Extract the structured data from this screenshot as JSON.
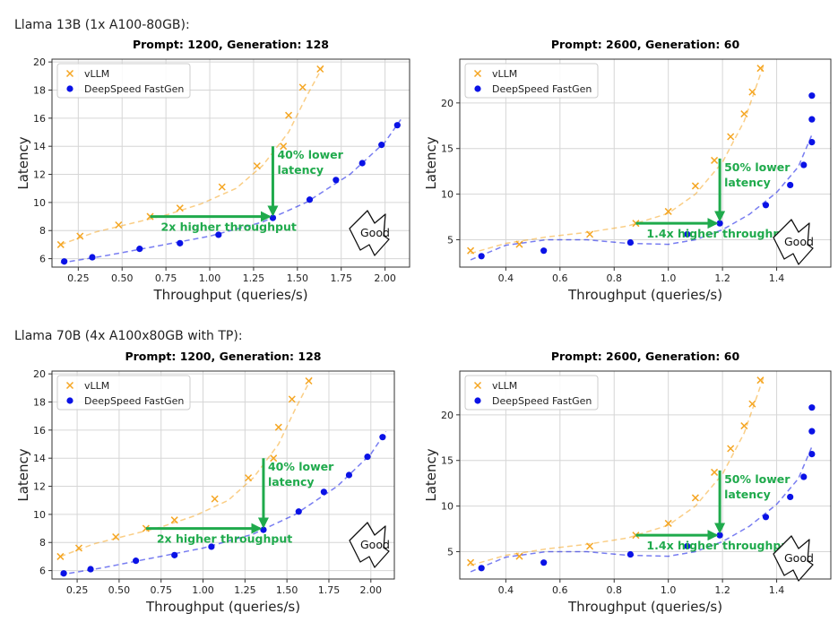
{
  "sections": [
    {
      "label": "Llama 13B (1x A100-80GB):"
    },
    {
      "label": "Llama 70B (4x A100x80GB with TP):"
    }
  ],
  "colors": {
    "vllm": "#f5a623",
    "fastgen": "#0a12e6",
    "annotation": "#1faa4c"
  },
  "chart_data": [
    {
      "type": "scatter",
      "title": "Prompt: 1200, Generation: 128",
      "xlabel": "Throughput (queries/s)",
      "ylabel": "Latency",
      "xlim": [
        0.1,
        2.14
      ],
      "ylim": [
        5.4,
        20.2
      ],
      "xticks": [
        0.25,
        0.5,
        0.75,
        1.0,
        1.25,
        1.5,
        1.75,
        2.0
      ],
      "xtick_labels": [
        "0.25",
        "0.50",
        "0.75",
        "1.00",
        "1.25",
        "1.50",
        "1.75",
        "2.00"
      ],
      "yticks": [
        6,
        8,
        10,
        12,
        14,
        16,
        18,
        20
      ],
      "ytick_labels": [
        "6",
        "8",
        "10",
        "12",
        "14",
        "16",
        "18",
        "20"
      ],
      "grid": true,
      "legend_position": "top-left",
      "series": [
        {
          "name": "vLLM",
          "marker": "x",
          "color": "#f5a623",
          "x": [
            0.15,
            0.26,
            0.48,
            0.66,
            0.83,
            1.07,
            1.27,
            1.45,
            1.53,
            1.63,
            1.42
          ],
          "y": [
            7.0,
            7.6,
            8.4,
            9.0,
            9.6,
            11.1,
            12.6,
            16.2,
            18.2,
            19.5,
            14.0
          ],
          "fit_x": [
            0.15,
            0.35,
            0.55,
            0.75,
            0.95,
            1.15,
            1.3,
            1.45,
            1.55,
            1.65
          ],
          "fit_y": [
            7.0,
            7.9,
            8.5,
            9.1,
            9.9,
            11.0,
            12.6,
            15.0,
            17.5,
            19.8
          ]
        },
        {
          "name": "DeepSpeed FastGen",
          "marker": "o",
          "color": "#0a12e6",
          "x": [
            0.17,
            0.33,
            0.6,
            0.83,
            1.05,
            1.36,
            1.57,
            1.72,
            1.87,
            1.98,
            2.07
          ],
          "y": [
            5.8,
            6.1,
            6.7,
            7.1,
            7.7,
            8.9,
            10.2,
            11.6,
            12.8,
            14.1,
            15.5
          ],
          "fit_x": [
            0.15,
            0.4,
            0.7,
            1.0,
            1.3,
            1.55,
            1.8,
            2.0,
            2.09
          ],
          "fit_y": [
            5.7,
            6.2,
            6.9,
            7.6,
            8.6,
            10.0,
            12.0,
            14.3,
            15.9
          ]
        }
      ],
      "annotations": {
        "h_arrow": {
          "x0": 0.66,
          "x1": 1.36,
          "y": 9.0,
          "label": "2x higher throughput"
        },
        "v_arrow": {
          "x": 1.36,
          "y0": 14.0,
          "y1": 8.9,
          "label_lines": [
            "40% lower",
            "latency"
          ]
        },
        "good_label": "Good"
      }
    },
    {
      "type": "scatter",
      "title": "Prompt: 2600, Generation: 60",
      "xlabel": "Throughput (queries/s)",
      "ylabel": "Latency",
      "xlim": [
        0.23,
        1.6
      ],
      "ylim": [
        2.0,
        24.8
      ],
      "xticks": [
        0.4,
        0.6,
        0.8,
        1.0,
        1.2,
        1.4
      ],
      "xtick_labels": [
        "0.4",
        "0.6",
        "0.8",
        "1.0",
        "1.2",
        "1.4"
      ],
      "yticks": [
        5,
        10,
        15,
        20
      ],
      "ytick_labels": [
        "5",
        "10",
        "15",
        "20"
      ],
      "grid": true,
      "legend_position": "top-left",
      "series": [
        {
          "name": "vLLM",
          "marker": "x",
          "color": "#f5a623",
          "x": [
            0.27,
            0.45,
            0.71,
            0.88,
            1.0,
            1.1,
            1.17,
            1.23,
            1.28,
            1.31,
            1.34
          ],
          "y": [
            3.8,
            4.5,
            5.6,
            6.8,
            8.1,
            10.9,
            13.7,
            16.3,
            18.8,
            21.2,
            23.8
          ],
          "fit_x": [
            0.27,
            0.4,
            0.55,
            0.7,
            0.85,
            1.0,
            1.1,
            1.2,
            1.28,
            1.35
          ],
          "fit_y": [
            3.5,
            4.6,
            5.3,
            5.8,
            6.5,
            7.9,
            10.0,
            13.5,
            18.0,
            24.0
          ]
        },
        {
          "name": "DeepSpeed FastGen",
          "marker": "o",
          "color": "#0a12e6",
          "x": [
            0.31,
            0.54,
            0.86,
            1.07,
            1.19,
            1.36,
            1.45,
            1.5,
            1.53,
            1.53,
            1.53
          ],
          "y": [
            3.2,
            3.8,
            4.7,
            5.6,
            6.8,
            8.8,
            11.0,
            13.2,
            15.7,
            18.2,
            20.8
          ],
          "fit_x": [
            0.27,
            0.4,
            0.55,
            0.7,
            0.85,
            1.0,
            1.1,
            1.2,
            1.3,
            1.4,
            1.48,
            1.53
          ],
          "fit_y": [
            2.8,
            4.4,
            5.0,
            5.0,
            4.6,
            4.5,
            5.0,
            6.1,
            7.8,
            10.2,
            13.0,
            16.5
          ]
        }
      ],
      "annotations": {
        "h_arrow": {
          "x0": 0.88,
          "x1": 1.19,
          "y": 6.8,
          "label": "1.4x higher throughput"
        },
        "v_arrow": {
          "x": 1.19,
          "y0": 13.9,
          "y1": 6.8,
          "label_lines": [
            "50% lower",
            "latency"
          ]
        },
        "good_label": "Good"
      }
    },
    {
      "type": "scatter",
      "title": "Prompt: 1200, Generation: 128",
      "xlabel": "Throughput (queries/s)",
      "ylabel": "Latency",
      "xlim": [
        0.1,
        2.14
      ],
      "ylim": [
        5.4,
        20.2
      ],
      "xticks": [
        0.25,
        0.5,
        0.75,
        1.0,
        1.25,
        1.5,
        1.75,
        2.0
      ],
      "xtick_labels": [
        "0.25",
        "0.50",
        "0.75",
        "1.00",
        "1.25",
        "1.50",
        "1.75",
        "2.00"
      ],
      "yticks": [
        6,
        8,
        10,
        12,
        14,
        16,
        18,
        20
      ],
      "ytick_labels": [
        "6",
        "8",
        "10",
        "12",
        "14",
        "16",
        "18",
        "20"
      ],
      "grid": true,
      "legend_position": "top-left",
      "series": [
        {
          "name": "vLLM",
          "marker": "x",
          "color": "#f5a623",
          "x": [
            0.15,
            0.26,
            0.48,
            0.66,
            0.83,
            1.07,
            1.27,
            1.45,
            1.53,
            1.63,
            1.42
          ],
          "y": [
            7.0,
            7.6,
            8.4,
            9.0,
            9.6,
            11.1,
            12.6,
            16.2,
            18.2,
            19.5,
            14.0
          ],
          "fit_x": [
            0.15,
            0.35,
            0.55,
            0.75,
            0.95,
            1.15,
            1.3,
            1.45,
            1.55,
            1.65
          ],
          "fit_y": [
            7.0,
            7.9,
            8.5,
            9.1,
            9.9,
            11.0,
            12.6,
            15.0,
            17.5,
            19.8
          ]
        },
        {
          "name": "DeepSpeed FastGen",
          "marker": "o",
          "color": "#0a12e6",
          "x": [
            0.17,
            0.33,
            0.6,
            0.83,
            1.05,
            1.36,
            1.57,
            1.72,
            1.87,
            1.98,
            2.07
          ],
          "y": [
            5.8,
            6.1,
            6.7,
            7.1,
            7.7,
            8.9,
            10.2,
            11.6,
            12.8,
            14.1,
            15.5
          ],
          "fit_x": [
            0.15,
            0.4,
            0.7,
            1.0,
            1.3,
            1.55,
            1.8,
            2.0,
            2.09
          ],
          "fit_y": [
            5.7,
            6.2,
            6.9,
            7.6,
            8.6,
            10.0,
            12.0,
            14.3,
            15.9
          ]
        }
      ],
      "annotations": {
        "h_arrow": {
          "x0": 0.66,
          "x1": 1.36,
          "y": 9.0,
          "label": "2x higher throughput"
        },
        "v_arrow": {
          "x": 1.36,
          "y0": 14.0,
          "y1": 8.9,
          "label_lines": [
            "40% lower",
            "latency"
          ]
        },
        "good_label": "Good"
      }
    },
    {
      "type": "scatter",
      "title": "Prompt: 2600, Generation: 60",
      "xlabel": "Throughput (queries/s)",
      "ylabel": "Latency",
      "xlim": [
        0.23,
        1.6
      ],
      "ylim": [
        2.0,
        24.8
      ],
      "xticks": [
        0.4,
        0.6,
        0.8,
        1.0,
        1.2,
        1.4
      ],
      "xtick_labels": [
        "0.4",
        "0.6",
        "0.8",
        "1.0",
        "1.2",
        "1.4"
      ],
      "yticks": [
        5,
        10,
        15,
        20
      ],
      "ytick_labels": [
        "5",
        "10",
        "15",
        "20"
      ],
      "grid": true,
      "legend_position": "top-left",
      "series": [
        {
          "name": "vLLM",
          "marker": "x",
          "color": "#f5a623",
          "x": [
            0.27,
            0.45,
            0.71,
            0.88,
            1.0,
            1.1,
            1.17,
            1.23,
            1.28,
            1.31,
            1.34
          ],
          "y": [
            3.8,
            4.5,
            5.6,
            6.8,
            8.1,
            10.9,
            13.7,
            16.3,
            18.8,
            21.2,
            23.8
          ],
          "fit_x": [
            0.27,
            0.4,
            0.55,
            0.7,
            0.85,
            1.0,
            1.1,
            1.2,
            1.28,
            1.35
          ],
          "fit_y": [
            3.5,
            4.6,
            5.3,
            5.8,
            6.5,
            7.9,
            10.0,
            13.5,
            18.0,
            24.0
          ]
        },
        {
          "name": "DeepSpeed FastGen",
          "marker": "o",
          "color": "#0a12e6",
          "x": [
            0.31,
            0.54,
            0.86,
            1.07,
            1.19,
            1.36,
            1.45,
            1.5,
            1.53,
            1.53,
            1.53
          ],
          "y": [
            3.2,
            3.8,
            4.7,
            5.6,
            6.8,
            8.8,
            11.0,
            13.2,
            15.7,
            18.2,
            20.8
          ],
          "fit_x": [
            0.27,
            0.4,
            0.55,
            0.7,
            0.85,
            1.0,
            1.1,
            1.2,
            1.3,
            1.4,
            1.48,
            1.53
          ],
          "fit_y": [
            2.8,
            4.4,
            5.0,
            5.0,
            4.6,
            4.5,
            5.0,
            6.1,
            7.8,
            10.2,
            13.0,
            16.5
          ]
        }
      ],
      "annotations": {
        "h_arrow": {
          "x0": 0.88,
          "x1": 1.19,
          "y": 6.8,
          "label": "1.4x higher throughput"
        },
        "v_arrow": {
          "x": 1.19,
          "y0": 13.9,
          "y1": 6.8,
          "label_lines": [
            "50% lower",
            "latency"
          ]
        },
        "good_label": "Good"
      }
    }
  ]
}
